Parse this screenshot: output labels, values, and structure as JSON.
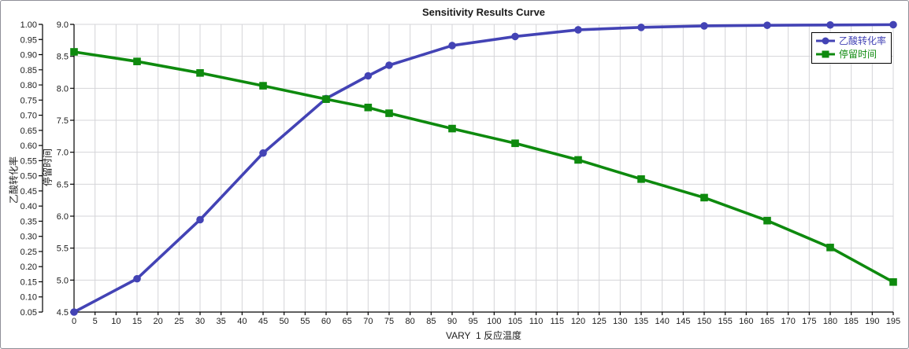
{
  "window": {
    "background": "#ffffff",
    "border_color": "#8f8f98"
  },
  "chart_data": {
    "type": "line",
    "title": "Sensitivity Results Curve",
    "xlabel": "VARY  1 反应温度",
    "x_axis": {
      "min": 0,
      "max": 195,
      "tick_step": 5
    },
    "y_axis_outer": {
      "label": "乙酸转化率",
      "min": 0.05,
      "max": 1.0,
      "tick_step": 0.05,
      "decimals": 2
    },
    "y_axis_inner": {
      "label": "停留时间",
      "min": 4.5,
      "max": 9.0,
      "tick_step": 0.5,
      "decimals": 1
    },
    "grid": {
      "show": true,
      "color": "#d4d4d8",
      "x_step": 5,
      "y_step_inner": 0.5
    },
    "x": [
      0,
      15,
      30,
      45,
      60,
      70,
      75,
      90,
      105,
      120,
      135,
      150,
      165,
      180,
      195
    ],
    "series": [
      {
        "name": "乙酸转化率",
        "axis": "outer",
        "color": "#4343b5",
        "marker": "circle",
        "values": [
          0.05,
          0.16,
          0.355,
          0.575,
          0.755,
          0.83,
          0.865,
          0.93,
          0.96,
          0.982,
          0.99,
          0.995,
          0.997,
          0.998,
          0.999
        ]
      },
      {
        "name": "停留时间",
        "axis": "inner",
        "color": "#0e8a0e",
        "marker": "square",
        "values": [
          8.57,
          8.42,
          8.24,
          8.04,
          7.83,
          7.7,
          7.61,
          7.37,
          7.14,
          6.88,
          6.58,
          6.29,
          5.93,
          5.51,
          4.97
        ]
      }
    ],
    "legend": {
      "position": "top-right"
    },
    "colors": {
      "axis": "#000000",
      "tick_text": "#1c1c1c"
    }
  }
}
